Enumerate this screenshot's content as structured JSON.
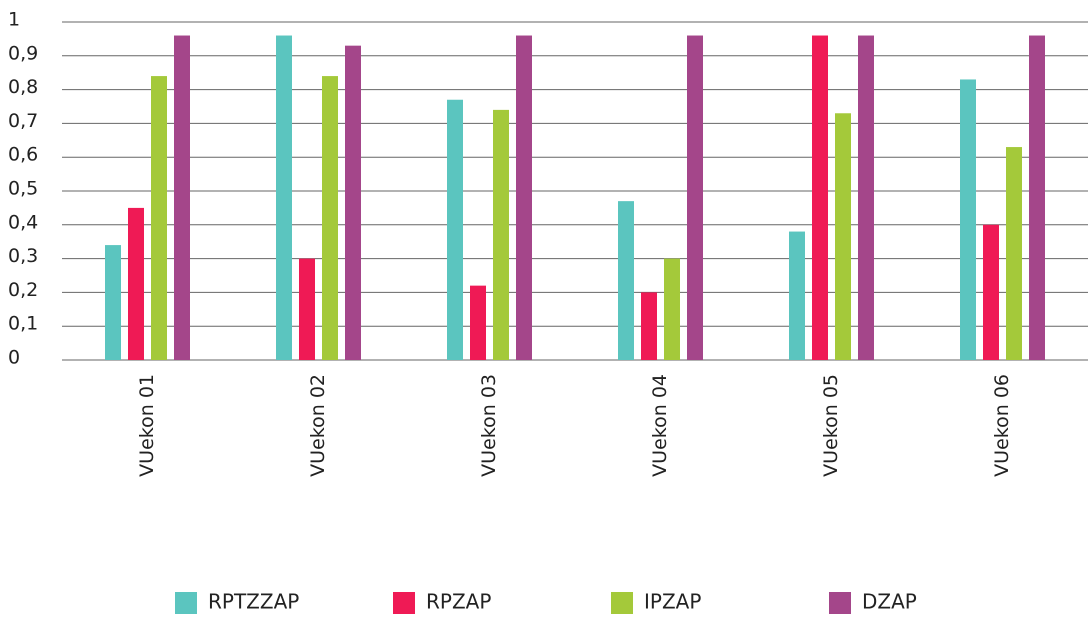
{
  "chart_data": {
    "type": "bar",
    "categories": [
      "VUekon 01",
      "VUekon 02",
      "VUekon 03",
      "VUekon 04",
      "VUekon 05",
      "VUekon 06"
    ],
    "series": [
      {
        "name": "RPTZZAP",
        "color": "#5bc5bf",
        "values": [
          0.34,
          0.96,
          0.77,
          0.47,
          0.38,
          0.83
        ]
      },
      {
        "name": "RPZAP",
        "color": "#ef1a55",
        "values": [
          0.45,
          0.3,
          0.22,
          0.2,
          0.96,
          0.4
        ]
      },
      {
        "name": "IPZAP",
        "color": "#a4c93a",
        "values": [
          0.84,
          0.84,
          0.74,
          0.3,
          0.73,
          0.63
        ]
      },
      {
        "name": "DZAP",
        "color": "#a4468a",
        "values": [
          0.96,
          0.93,
          0.96,
          0.96,
          0.96,
          0.96
        ]
      }
    ],
    "ylim": [
      0,
      1
    ],
    "yticks": [
      0,
      {
        "value": 0.1,
        "label": "0,1"
      },
      {
        "value": 0.2,
        "label": "0,2"
      },
      {
        "value": 0.3,
        "label": "0,3"
      },
      {
        "value": 0.4,
        "label": "0,4"
      },
      {
        "value": 0.5,
        "label": "0,5"
      },
      {
        "value": 0.6,
        "label": "0,6"
      },
      {
        "value": 0.7,
        "label": "0,7"
      },
      {
        "value": 0.8,
        "label": "0,8"
      },
      {
        "value": 0.9,
        "label": "0,9"
      },
      1
    ],
    "grid": true,
    "legend": "bottom"
  }
}
